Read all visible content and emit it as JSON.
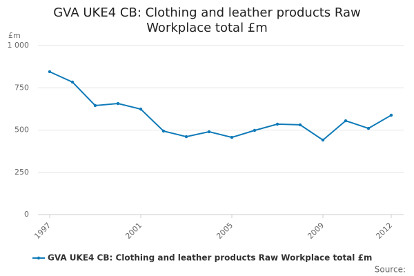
{
  "chart_data": {
    "type": "line",
    "title": "GVA UKE4 CB: Clothing and leather products Raw Workplace total £m",
    "y_label": "£m",
    "source": "Source:",
    "x": [
      1997,
      1998,
      1999,
      2000,
      2001,
      2002,
      2003,
      2004,
      2005,
      2006,
      2007,
      2008,
      2009,
      2010,
      2011,
      2012
    ],
    "series": [
      {
        "name": "GVA UKE4 CB: Clothing and leather products Raw Workplace total £m",
        "color": "#0f7ab8",
        "values": [
          845,
          784,
          645,
          657,
          624,
          494,
          461,
          490,
          457,
          498,
          535,
          531,
          441,
          555,
          510,
          588
        ]
      }
    ],
    "xlim": [
      1997,
      2012
    ],
    "xticks": [
      1997,
      2001,
      2005,
      2009,
      2012
    ],
    "ylim": [
      0,
      1000
    ],
    "yticks": [
      0,
      250,
      500,
      750,
      {
        "value": 1000,
        "label": "1 000"
      }
    ],
    "grid": true,
    "legend": "bottom"
  }
}
